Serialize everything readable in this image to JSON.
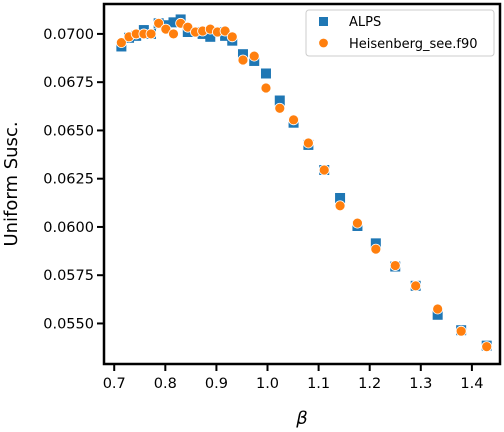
{
  "chart_data": {
    "type": "scatter",
    "xlabel": "β",
    "ylabel": "Uniform Susc.",
    "xlim": [
      0.68,
      1.455
    ],
    "ylim": [
      0.0529,
      0.07155
    ],
    "xticks": [
      0.7,
      0.8,
      0.9,
      1.0,
      1.1,
      1.2,
      1.3,
      1.4
    ],
    "xtick_labels": [
      "0.7",
      "0.8",
      "0.9",
      "1.0",
      "1.1",
      "1.2",
      "1.3",
      "1.4"
    ],
    "yticks": [
      0.055,
      0.0575,
      0.06,
      0.0625,
      0.065,
      0.0675,
      0.07
    ],
    "ytick_labels": [
      "0.0550",
      "0.0575",
      "0.0600",
      "0.0625",
      "0.0650",
      "0.0675",
      "0.0700"
    ],
    "legend_position": "top-right",
    "grid": false,
    "series": [
      {
        "name": "ALPS",
        "marker": "square",
        "color": "#1f77b4",
        "x": [
          0.714,
          0.729,
          0.743,
          0.758,
          0.772,
          0.787,
          0.801,
          0.816,
          0.83,
          0.844,
          0.859,
          0.873,
          0.888,
          0.902,
          0.917,
          0.931,
          0.952,
          0.974,
          0.997,
          1.024,
          1.051,
          1.08,
          1.111,
          1.142,
          1.176,
          1.212,
          1.25,
          1.29,
          1.333,
          1.379,
          1.429
        ],
        "y": [
          0.06935,
          0.0698,
          0.0699,
          0.0702,
          0.07,
          0.07055,
          0.07045,
          0.0706,
          0.07075,
          0.0701,
          0.0701,
          0.07,
          0.06985,
          0.0701,
          0.0699,
          0.06965,
          0.06895,
          0.0686,
          0.06795,
          0.06655,
          0.0654,
          0.06425,
          0.06295,
          0.0615,
          0.06005,
          0.05915,
          0.05795,
          0.05695,
          0.05545,
          0.05465,
          0.05385
        ]
      },
      {
        "name": "Heisenberg_see.f90",
        "marker": "circle",
        "color": "#ff7f0e",
        "x": [
          0.714,
          0.729,
          0.743,
          0.758,
          0.772,
          0.787,
          0.801,
          0.816,
          0.83,
          0.844,
          0.859,
          0.873,
          0.888,
          0.902,
          0.917,
          0.931,
          0.952,
          0.974,
          0.997,
          1.024,
          1.051,
          1.08,
          1.111,
          1.142,
          1.176,
          1.212,
          1.25,
          1.29,
          1.333,
          1.379,
          1.429
        ],
        "y": [
          0.06955,
          0.06985,
          0.07,
          0.07,
          0.07,
          0.07055,
          0.07025,
          0.07,
          0.07055,
          0.07035,
          0.0701,
          0.07015,
          0.07025,
          0.0701,
          0.07015,
          0.06985,
          0.06865,
          0.06885,
          0.0672,
          0.06615,
          0.06555,
          0.06435,
          0.06295,
          0.0611,
          0.0602,
          0.05885,
          0.058,
          0.05695,
          0.05575,
          0.0546,
          0.0538
        ]
      }
    ]
  }
}
